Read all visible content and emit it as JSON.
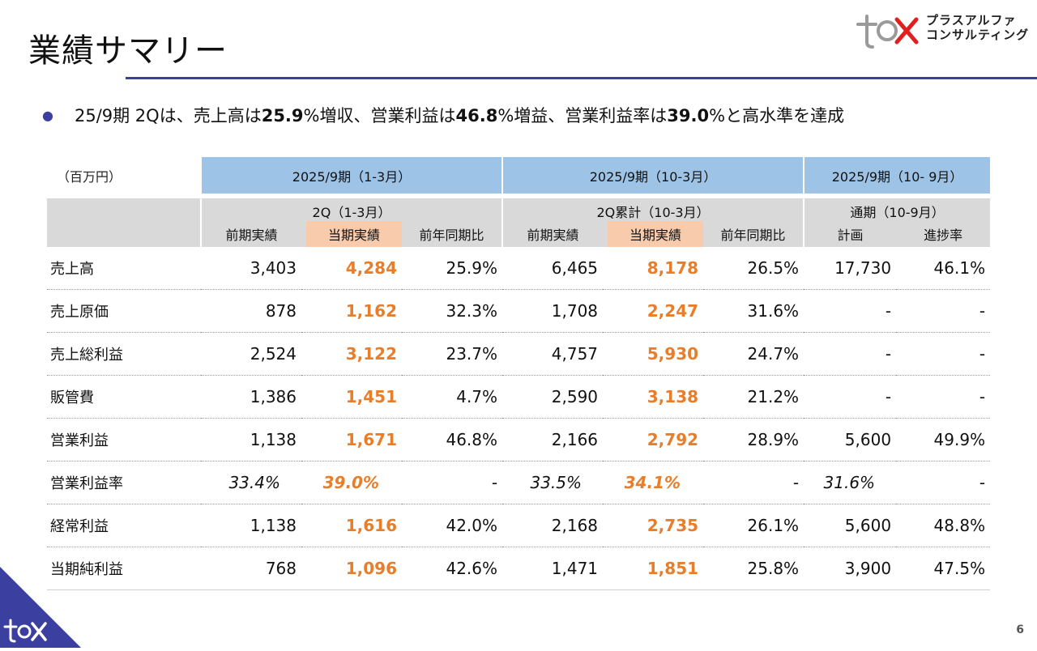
{
  "title": "業績サマリー",
  "logo": {
    "line1": "プラスアルファ",
    "line2": "コンサルティング"
  },
  "bullet": {
    "p1": "25/9期 2Qは、売上高は",
    "b1": "25.9",
    "p2": "%増収、営業利益は",
    "b2": "46.8",
    "p3": "%増益、営業利益率は",
    "b3": "39.0",
    "p4": "%と高水準を達成"
  },
  "table": {
    "unit": "（百万円）",
    "groups": [
      "2025/9期（1-3月）",
      "2025/9期（10-3月）",
      "2025/9期（10- 9月）"
    ],
    "subgroups": [
      "2Q（1-3月）",
      "2Q累計（10-3月）",
      "通期（10-9月）"
    ],
    "cols": {
      "prev": "前期実績",
      "cur": "当期実績",
      "yoy": "前年同期比",
      "plan": "計画",
      "progress": "進捗率"
    },
    "rows": [
      {
        "label": "売上高",
        "q2_prev": "3,403",
        "q2_cur": "4,284",
        "q2_yoy": "25.9%",
        "cum_prev": "6,465",
        "cum_cur": "8,178",
        "cum_yoy": "26.5%",
        "plan": "17,730",
        "progress": "46.1%"
      },
      {
        "label": "売上原価",
        "q2_prev": "878",
        "q2_cur": "1,162",
        "q2_yoy": "32.3%",
        "cum_prev": "1,708",
        "cum_cur": "2,247",
        "cum_yoy": "31.6%",
        "plan": "-",
        "progress": "-"
      },
      {
        "label": "売上総利益",
        "q2_prev": "2,524",
        "q2_cur": "3,122",
        "q2_yoy": "23.7%",
        "cum_prev": "4,757",
        "cum_cur": "5,930",
        "cum_yoy": "24.7%",
        "plan": "-",
        "progress": "-"
      },
      {
        "label": "販管費",
        "q2_prev": "1,386",
        "q2_cur": "1,451",
        "q2_yoy": "4.7%",
        "cum_prev": "2,590",
        "cum_cur": "3,138",
        "cum_yoy": "21.2%",
        "plan": "-",
        "progress": "-"
      },
      {
        "label": "営業利益",
        "q2_prev": "1,138",
        "q2_cur": "1,671",
        "q2_yoy": "46.8%",
        "cum_prev": "2,166",
        "cum_cur": "2,792",
        "cum_yoy": "28.9%",
        "plan": "5,600",
        "progress": "49.9%"
      },
      {
        "label": "営業利益率",
        "q2_prev": "33.4%",
        "q2_cur": "39.0%",
        "q2_yoy": "-",
        "cum_prev": "33.5%",
        "cum_cur": "34.1%",
        "cum_yoy": "-",
        "plan": "31.6%",
        "progress": "-"
      },
      {
        "label": "経常利益",
        "q2_prev": "1,138",
        "q2_cur": "1,616",
        "q2_yoy": "42.0%",
        "cum_prev": "2,168",
        "cum_cur": "2,735",
        "cum_yoy": "26.1%",
        "plan": "5,600",
        "progress": "48.8%"
      },
      {
        "label": "当期純利益",
        "q2_prev": "768",
        "q2_cur": "1,096",
        "q2_yoy": "42.6%",
        "cum_prev": "1,471",
        "cum_cur": "1,851",
        "cum_yoy": "25.8%",
        "plan": "3,900",
        "progress": "47.5%"
      }
    ]
  },
  "page_number": "6",
  "colors": {
    "accent": "#3b3fa0",
    "header_blue": "#9dc3e6",
    "header_gray": "#d9d9d9",
    "current_highlight": "#f8cbad",
    "current_value": "#e87d2a",
    "logo_red": "#e02020",
    "logo_gray": "#9a9a9a"
  }
}
